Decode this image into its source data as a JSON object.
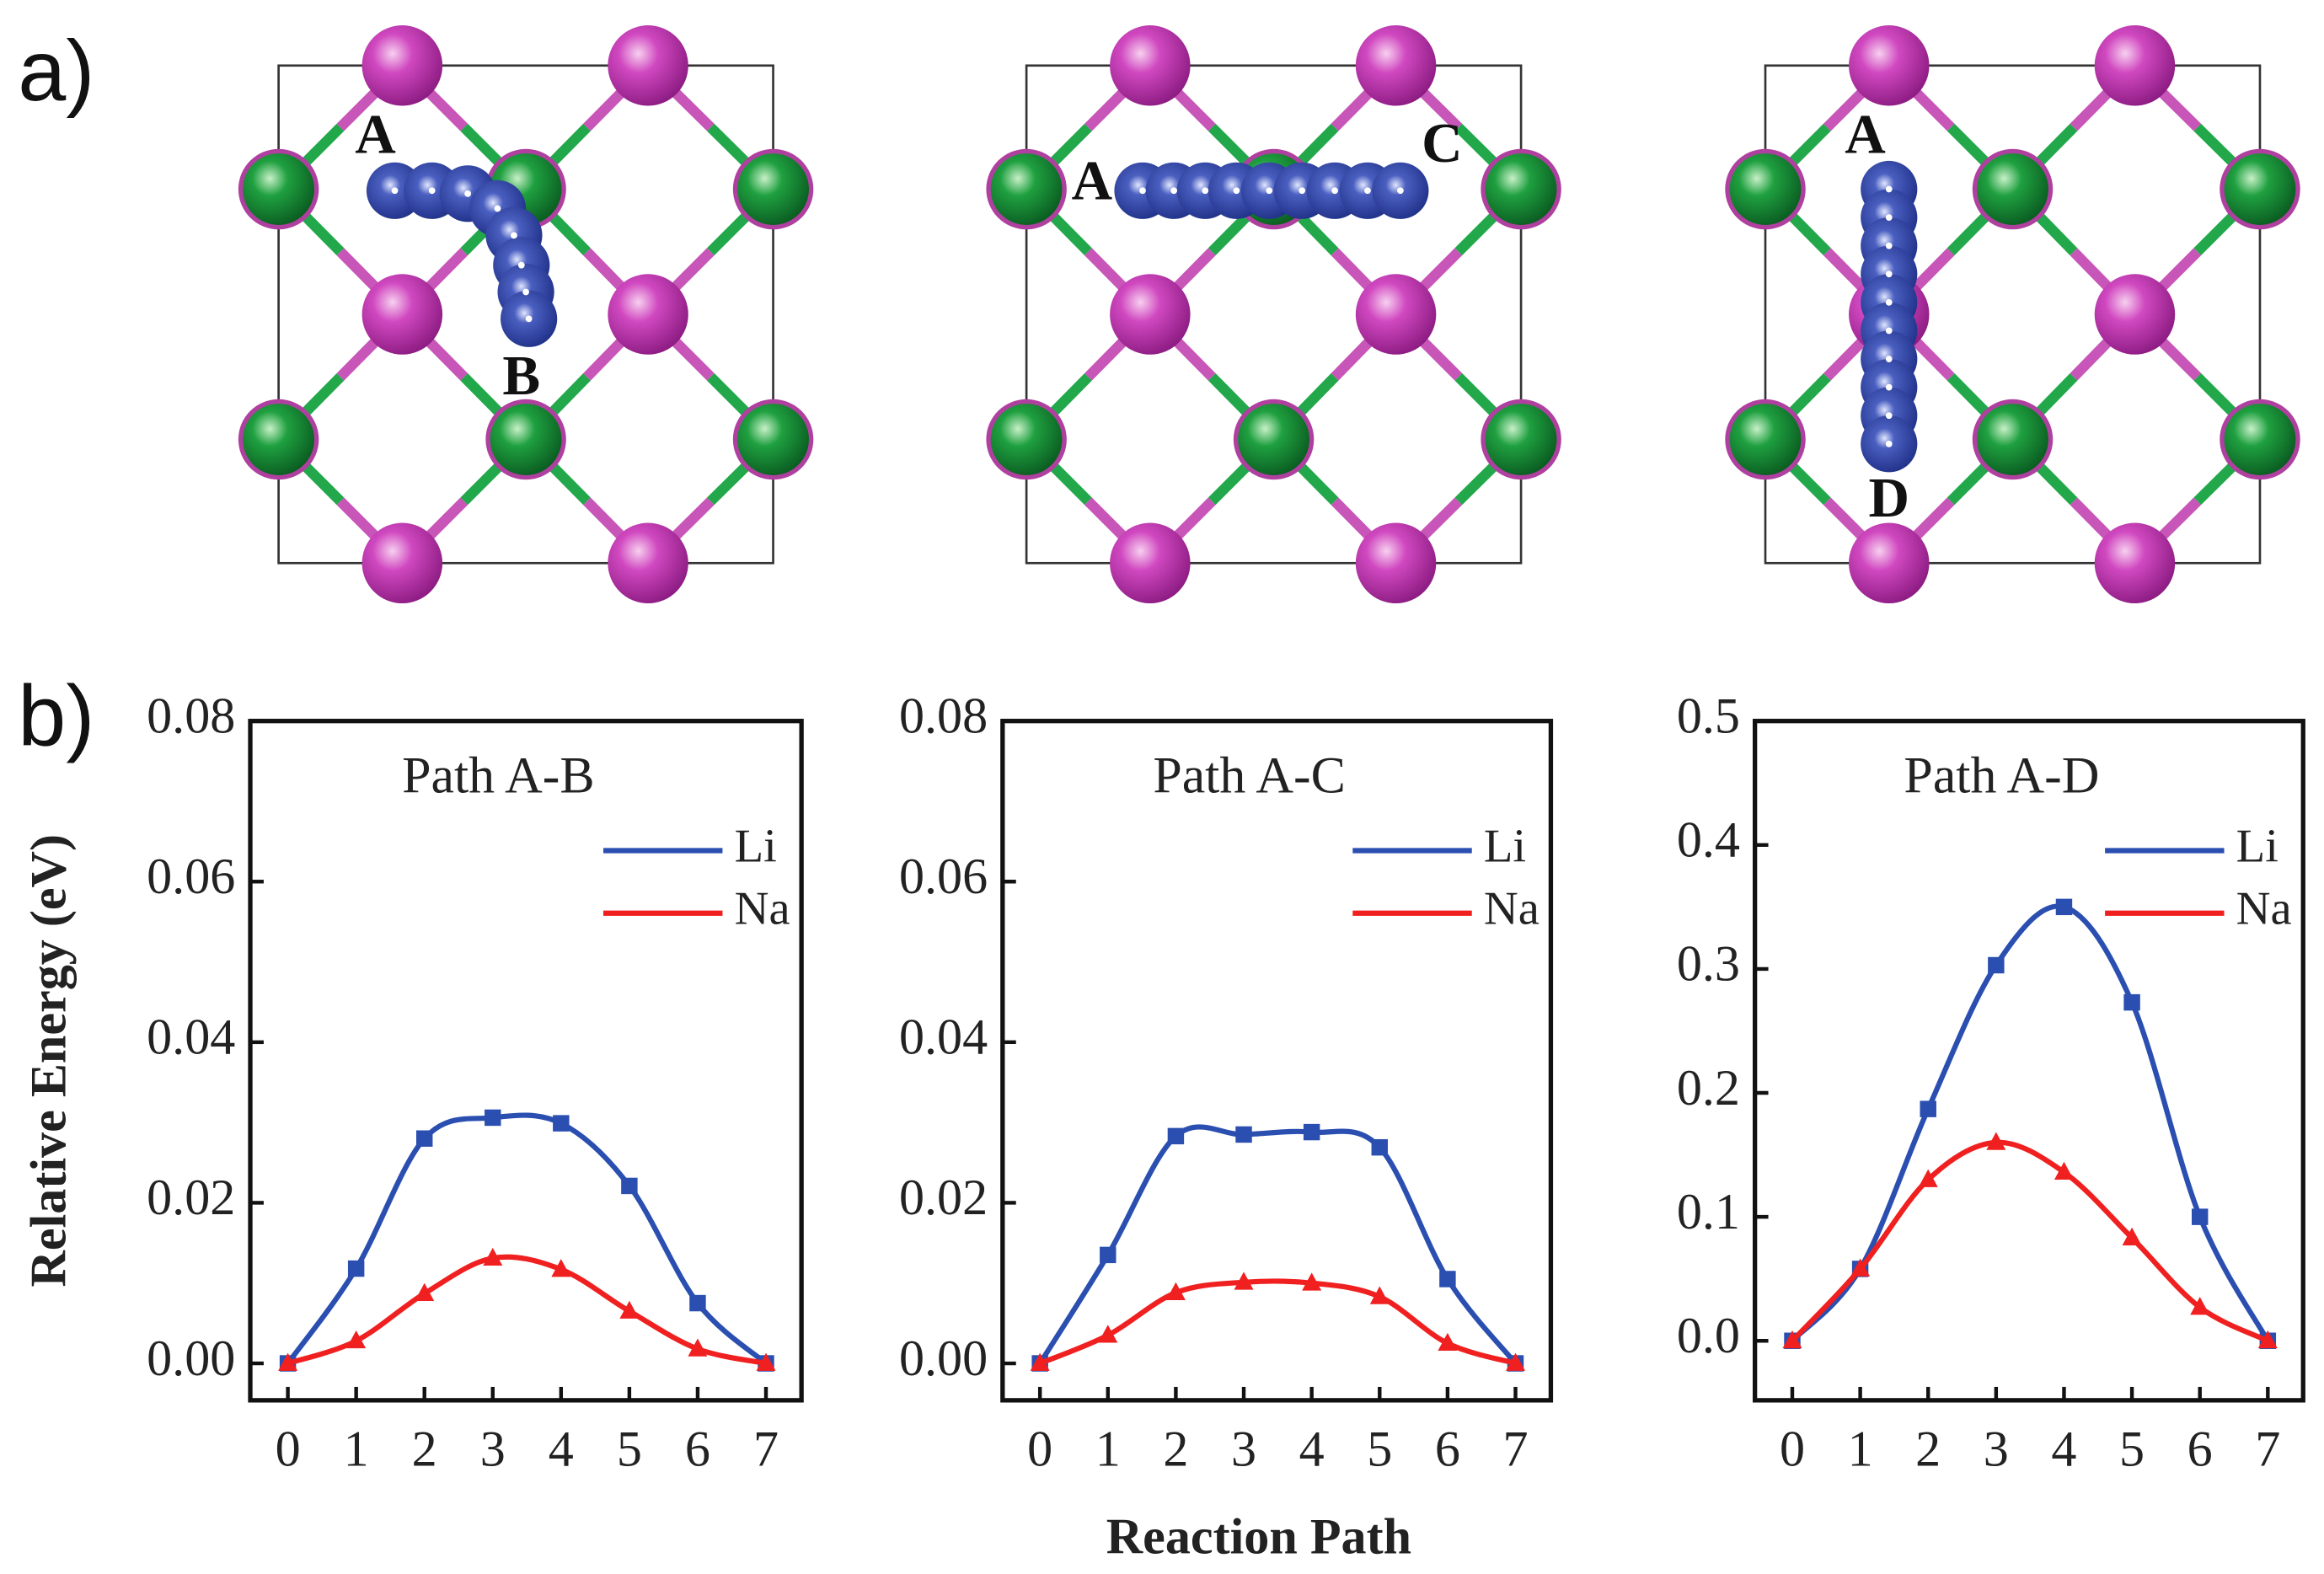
{
  "panel_labels": [
    "a)",
    "b)"
  ],
  "structures": [
    {
      "labels": [
        "A",
        "B"
      ]
    },
    {
      "labels": [
        "A",
        "C"
      ]
    },
    {
      "labels": [
        "A",
        "D"
      ]
    }
  ],
  "shared_axes": {
    "ylabel": "Relative Energy (eV)",
    "xlabel": "Reaction Path"
  },
  "chart_data": [
    {
      "type": "line",
      "title": "Path A-B",
      "x": [
        0,
        1,
        2,
        3,
        4,
        5,
        6,
        7
      ],
      "series": [
        {
          "name": "Li",
          "color": "#2a4fb0",
          "marker": "square",
          "values": [
            0,
            0.0118,
            0.028,
            0.0306,
            0.0299,
            0.0221,
            0.0075,
            0
          ]
        },
        {
          "name": "Na",
          "color": "#f02020",
          "marker": "triangle",
          "values": [
            0,
            0.0028,
            0.0087,
            0.0131,
            0.0117,
            0.0065,
            0.0018,
            0
          ]
        }
      ],
      "xlim": [
        -0.55,
        7.52
      ],
      "xticks": [
        0,
        1,
        2,
        3,
        4,
        5,
        6,
        7
      ],
      "ylim": [
        -0.0046,
        0.08
      ],
      "yticks": [
        {
          "value": 0,
          "label": "0.00"
        },
        {
          "value": 0.02,
          "label": "0.02"
        },
        {
          "value": 0.04,
          "label": "0.04"
        },
        {
          "value": 0.06,
          "label": "0.06"
        },
        {
          "value": 0.08,
          "label": "0.08"
        }
      ],
      "legend": "upper right",
      "grid": false
    },
    {
      "type": "line",
      "title": "Path A-C",
      "x": [
        0,
        1,
        2,
        3,
        4,
        5,
        6,
        7
      ],
      "series": [
        {
          "name": "Li",
          "color": "#2a4fb0",
          "marker": "square",
          "values": [
            0,
            0.0135,
            0.0283,
            0.0285,
            0.0288,
            0.0269,
            0.0105,
            0
          ]
        },
        {
          "name": "Na",
          "color": "#f02020",
          "marker": "triangle",
          "values": [
            0,
            0.0035,
            0.0088,
            0.0101,
            0.01,
            0.0083,
            0.0025,
            0
          ]
        }
      ],
      "xlim": [
        -0.55,
        7.52
      ],
      "xticks": [
        0,
        1,
        2,
        3,
        4,
        5,
        6,
        7
      ],
      "ylim": [
        -0.0046,
        0.08
      ],
      "yticks": [
        {
          "value": 0,
          "label": "0.00"
        },
        {
          "value": 0.02,
          "label": "0.02"
        },
        {
          "value": 0.04,
          "label": "0.04"
        },
        {
          "value": 0.06,
          "label": "0.06"
        },
        {
          "value": 0.08,
          "label": "0.08"
        }
      ],
      "legend": "upper right",
      "grid": false
    },
    {
      "type": "line",
      "title": "Path A-D",
      "x": [
        0,
        1,
        2,
        3,
        4,
        5,
        6,
        7
      ],
      "series": [
        {
          "name": "Li",
          "color": "#2a4fb0",
          "marker": "square",
          "values": [
            0,
            0.058,
            0.187,
            0.303,
            0.35,
            0.273,
            0.1,
            0
          ]
        },
        {
          "name": "Na",
          "color": "#f02020",
          "marker": "triangle",
          "values": [
            0,
            0.058,
            0.13,
            0.16,
            0.136,
            0.083,
            0.027,
            0
          ]
        }
      ],
      "xlim": [
        -0.55,
        7.52
      ],
      "xticks": [
        0,
        1,
        2,
        3,
        4,
        5,
        6,
        7
      ],
      "ylim": [
        -0.048,
        0.5
      ],
      "yticks": [
        {
          "value": 0,
          "label": "0.0"
        },
        {
          "value": 0.1,
          "label": "0.1"
        },
        {
          "value": 0.2,
          "label": "0.2"
        },
        {
          "value": 0.3,
          "label": "0.3"
        },
        {
          "value": 0.4,
          "label": "0.4"
        },
        {
          "value": 0.5,
          "label": "0.5"
        }
      ],
      "legend": "upper right",
      "grid": false
    }
  ]
}
